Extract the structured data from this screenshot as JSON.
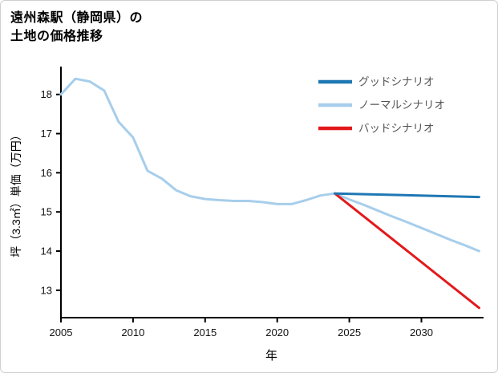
{
  "page": {
    "background": "#ffffff",
    "border_color": "#cfcfcf"
  },
  "title": {
    "line1": "遠州森駅（静岡県）の",
    "line2": "土地の価格推移"
  },
  "chart_data": {
    "type": "line",
    "title": "遠州森駅（静岡県）の土地の価格推移",
    "xlabel": "年",
    "ylabel": "坪（3.3㎡）単価（万円）",
    "xlim": [
      2005,
      2034.2
    ],
    "ylim": [
      12.3,
      18.65
    ],
    "xticks": [
      2005,
      2010,
      2015,
      2020,
      2025,
      2030
    ],
    "yticks": [
      13,
      14,
      15,
      16,
      17,
      18
    ],
    "grid": false,
    "legend_position": "top-right",
    "axis_color": "#000000",
    "tick_label_color": "#111111",
    "legend_text_color": "#555555",
    "series": [
      {
        "name": "グッドシナリオ",
        "color": "#1f77b4",
        "x": [
          2024,
          2034
        ],
        "y": [
          15.47,
          15.38
        ]
      },
      {
        "name": "ノーマルシナリオ",
        "color": "#a7ceeb",
        "x": [
          2005,
          2006,
          2007,
          2008,
          2009,
          2010,
          2011,
          2012,
          2013,
          2014,
          2015,
          2016,
          2017,
          2018,
          2019,
          2020,
          2021,
          2022,
          2023,
          2024,
          2025,
          2026,
          2027,
          2028,
          2029,
          2030,
          2031,
          2032,
          2033,
          2034
        ],
        "y": [
          18.0,
          18.4,
          18.33,
          18.1,
          17.3,
          16.9,
          16.05,
          15.85,
          15.55,
          15.4,
          15.33,
          15.3,
          15.28,
          15.28,
          15.25,
          15.2,
          15.2,
          15.3,
          15.42,
          15.47,
          15.32,
          15.18,
          15.03,
          14.88,
          14.74,
          14.59,
          14.44,
          14.29,
          14.15,
          14.0
        ]
      },
      {
        "name": "バッドシナリオ",
        "color": "#e3191c",
        "x": [
          2024,
          2034
        ],
        "y": [
          15.47,
          12.55
        ]
      }
    ]
  }
}
